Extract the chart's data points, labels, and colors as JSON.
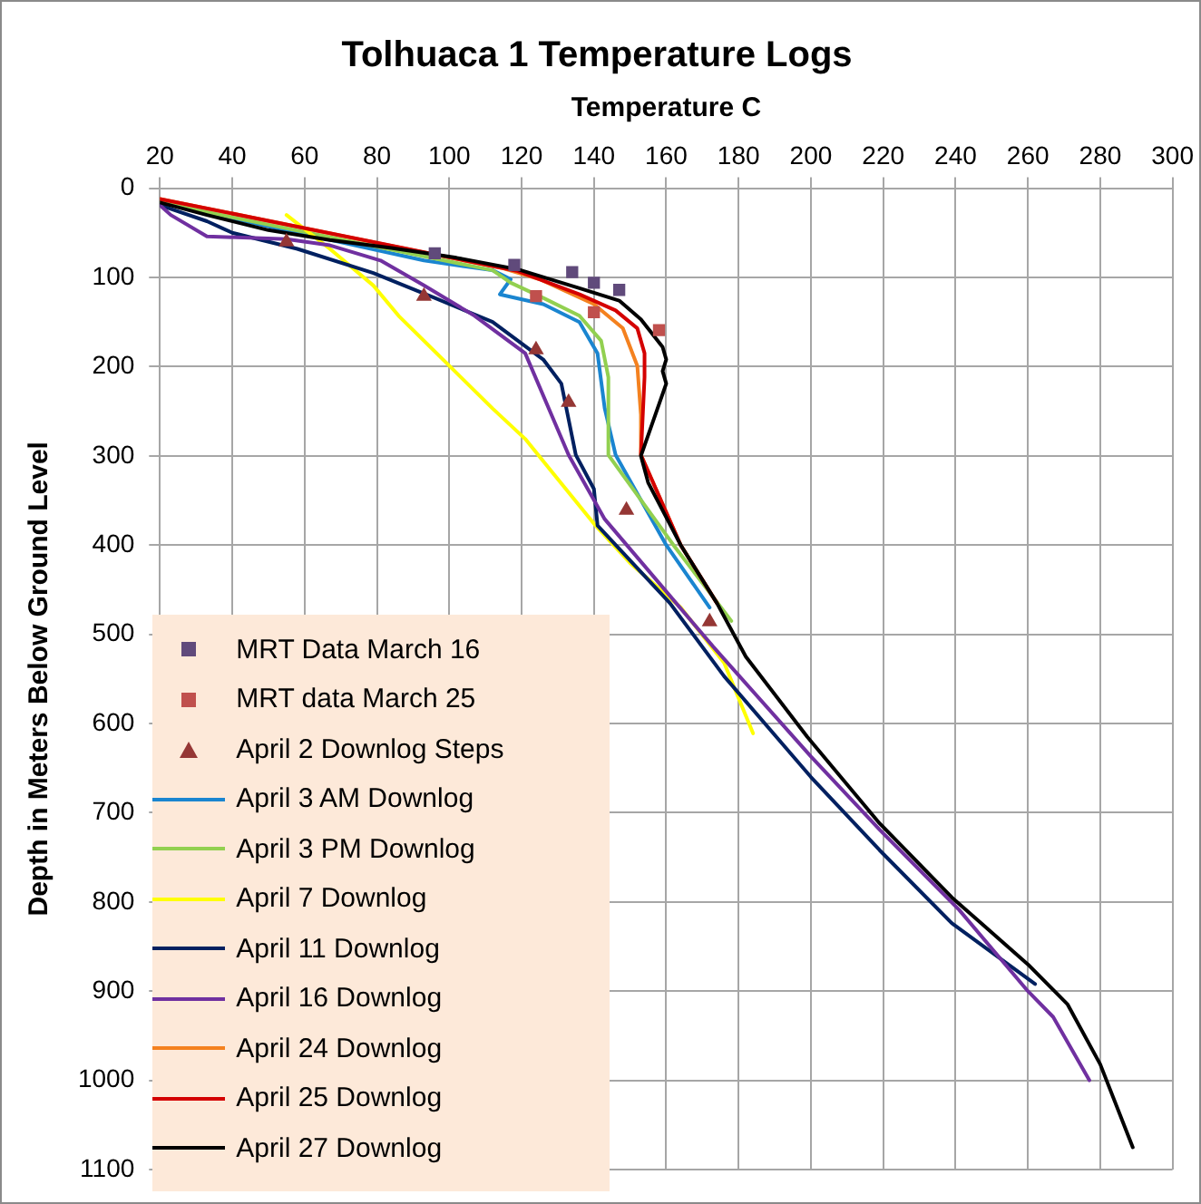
{
  "chart_data": {
    "type": "line",
    "title": "Tolhuaca 1 Temperature Logs",
    "xlabel": "Temperature C",
    "ylabel": "Depth in Meters Below Ground Level",
    "xlim": [
      20,
      300
    ],
    "xticks": [
      20,
      40,
      60,
      80,
      100,
      120,
      140,
      160,
      180,
      200,
      220,
      240,
      260,
      280,
      300
    ],
    "ylim": [
      1100,
      0
    ],
    "yticks": [
      0,
      100,
      200,
      300,
      400,
      500,
      600,
      700,
      800,
      900,
      1000,
      1100
    ],
    "grid": true,
    "legend": "bottom left",
    "line_style": "solid",
    "series": [
      {
        "name": "MRT Data March 16",
        "type": "scatter",
        "marker": "square",
        "color": "#604a7b",
        "x": [
          96,
          118,
          134,
          140,
          147
        ],
        "values": [
          73,
          86,
          94,
          106,
          114
        ]
      },
      {
        "name": "MRT data March 25",
        "type": "scatter",
        "marker": "square",
        "color": "#c0504d",
        "x": [
          124,
          140,
          158
        ],
        "values": [
          121,
          139,
          159
        ]
      },
      {
        "name": "April 2 Downlog Steps",
        "type": "scatter",
        "marker": "triangle",
        "color": "#953735",
        "x": [
          55,
          93,
          124,
          133,
          149,
          172
        ],
        "values": [
          60,
          121,
          181,
          240,
          361,
          486
        ]
      },
      {
        "name": "April 3 AM Downlog",
        "type": "line",
        "marker": "none",
        "color": "#1a85d0",
        "x": [
          20,
          93,
          112,
          117,
          114,
          126,
          136,
          141,
          143,
          146,
          160,
          172
        ],
        "values": [
          16,
          81,
          92,
          102,
          119,
          130,
          150,
          185,
          247,
          299,
          400,
          470
        ]
      },
      {
        "name": "April 3 PM Downlog",
        "type": "line",
        "marker": "none",
        "color": "#92d050",
        "x": [
          20,
          112,
          117,
          126,
          136,
          142,
          144,
          144,
          162,
          178
        ],
        "values": [
          16,
          92,
          106,
          123,
          143,
          171,
          212,
          299,
          400,
          485
        ]
      },
      {
        "name": "April 7 Downlog",
        "type": "line",
        "marker": "none",
        "color": "#ffff00",
        "x": [
          55,
          67,
          79,
          86,
          100,
          112,
          121,
          140,
          150,
          164,
          176,
          184
        ],
        "values": [
          30,
          68,
          109,
          143,
          199,
          247,
          281,
          376,
          420,
          470,
          532,
          611
        ]
      },
      {
        "name": "April 11 Downlog",
        "type": "line",
        "marker": "none",
        "color": "#002060",
        "x": [
          20,
          33,
          40,
          58,
          79,
          96,
          112,
          126,
          131,
          135,
          140,
          141,
          161,
          176,
          200,
          219,
          239,
          262
        ],
        "values": [
          19,
          37,
          50,
          68,
          95,
          123,
          150,
          192,
          219,
          299,
          337,
          378,
          465,
          547,
          660,
          742,
          824,
          892
        ]
      },
      {
        "name": "April 16 Downlog",
        "type": "line",
        "marker": "none",
        "color": "#7030a0",
        "x": [
          20,
          23,
          33,
          55,
          67,
          81,
          93,
          107,
          121,
          133,
          143,
          173,
          200,
          219,
          241,
          260,
          267,
          277
        ],
        "values": [
          19,
          30,
          54,
          57,
          64,
          81,
          109,
          143,
          185,
          299,
          371,
          514,
          637,
          719,
          809,
          900,
          929,
          1000
        ]
      },
      {
        "name": "April 24 Downlog",
        "type": "line",
        "marker": "none",
        "color": "#f4811f",
        "x": [
          20,
          115,
          125,
          140,
          148,
          152,
          153,
          153,
          164,
          174
        ],
        "values": [
          12,
          90,
          102,
          130,
          157,
          199,
          254,
          299,
          400,
          465
        ]
      },
      {
        "name": "April 25 Downlog",
        "type": "line",
        "marker": "none",
        "color": "#d40000",
        "x": [
          20,
          119,
          136,
          146,
          152,
          154,
          154,
          153,
          164,
          174
        ],
        "values": [
          12,
          93,
          119,
          137,
          157,
          185,
          212,
          299,
          400,
          465
        ]
      },
      {
        "name": "April 27 Downlog",
        "type": "line",
        "marker": "none",
        "color": "#000000",
        "x": [
          20,
          33,
          50,
          67,
          84,
          102,
          119,
          136,
          147,
          153,
          159,
          160,
          159,
          160,
          153,
          155,
          164,
          174,
          182,
          199,
          219,
          239,
          260,
          271,
          280,
          289
        ],
        "values": [
          16,
          30,
          47,
          58,
          67,
          78,
          91,
          112,
          126,
          147,
          178,
          192,
          205,
          219,
          300,
          330,
          400,
          465,
          525,
          615,
          712,
          795,
          870,
          915,
          982,
          1075
        ]
      }
    ]
  }
}
